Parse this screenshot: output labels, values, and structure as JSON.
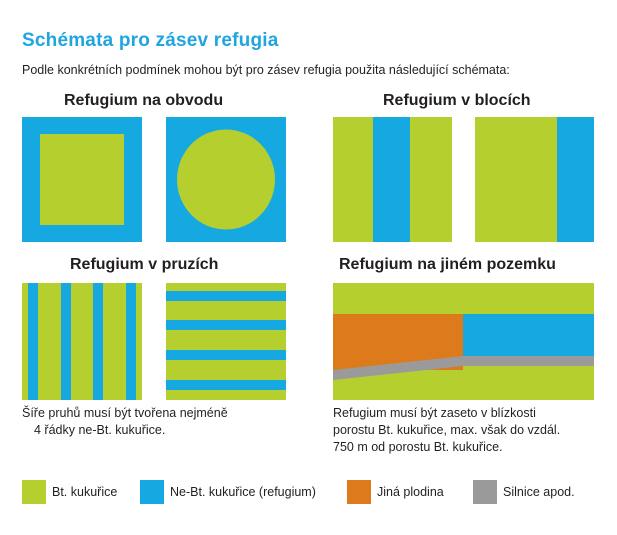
{
  "header": {
    "title": "Schémata pro zásev refugia",
    "intro": "Podle konkrétních podmínek mohou být pro zásev refugia použita následující schémata:"
  },
  "sections": {
    "perimeter": {
      "title": "Refugium na obvodu"
    },
    "blocks": {
      "title": "Refugium v blocích"
    },
    "strips": {
      "title": "Refugium v pruzích",
      "note_line1": "Šíře pruhů musí být tvořena nejméně",
      "note_line2": "4 řádky ne-Bt. kukuřice."
    },
    "other_field": {
      "title": "Refugium na jiném pozemku",
      "note_line1": "Refugium musí být zaseto v blízkosti",
      "note_line2": "porostu Bt. kukuřice, max. však do vzdál.",
      "note_line3": "750 m od porostu Bt. kukuřice."
    }
  },
  "colors": {
    "bt_corn": "#b5cf2f",
    "non_bt_corn": "#15a8e1",
    "other_crop": "#dd7a1b",
    "road": "#9a9a9a",
    "title_accent": "#1fa6e0"
  },
  "legend": [
    {
      "label": "Bt. kukuřice",
      "color": "#b5cf2f"
    },
    {
      "label": "Ne-Bt. kukuřice (refugium)",
      "color": "#15a8e1"
    },
    {
      "label": "Jiná plodina",
      "color": "#dd7a1b"
    },
    {
      "label": "Silnice apod.",
      "color": "#9a9a9a"
    }
  ]
}
